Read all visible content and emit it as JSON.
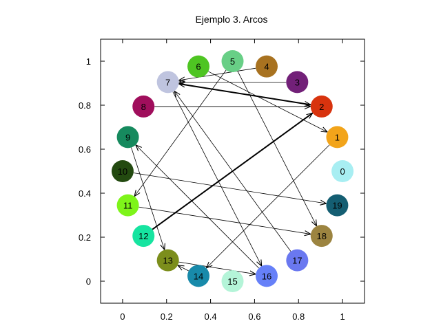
{
  "chart_data": {
    "type": "scatter",
    "title": "Ejemplo 3. Arcos",
    "xlabel": "",
    "ylabel": "",
    "xlim": [
      -0.1,
      1.1
    ],
    "ylim": [
      -0.1,
      1.1
    ],
    "xticks": [
      {
        "value": 0,
        "label": "0"
      },
      {
        "value": 0.2,
        "label": "0.2"
      },
      {
        "value": 0.4,
        "label": "0.4"
      },
      {
        "value": 0.6,
        "label": "0.6"
      },
      {
        "value": 0.8,
        "label": "0.8"
      },
      {
        "value": 1,
        "label": "1"
      }
    ],
    "yticks": [
      {
        "value": 0,
        "label": "0"
      },
      {
        "value": 0.2,
        "label": "0.2"
      },
      {
        "value": 0.4,
        "label": "0.4"
      },
      {
        "value": 0.6,
        "label": "0.6"
      },
      {
        "value": 0.8,
        "label": "0.8"
      },
      {
        "value": 1,
        "label": "1"
      }
    ],
    "grid": false,
    "nodes": [
      {
        "id": "0",
        "x": 1.0,
        "y": 0.5,
        "color": "#a8eef2"
      },
      {
        "id": "1",
        "x": 0.976,
        "y": 0.655,
        "color": "#f2a41a"
      },
      {
        "id": "2",
        "x": 0.905,
        "y": 0.794,
        "color": "#d8330e"
      },
      {
        "id": "3",
        "x": 0.794,
        "y": 0.905,
        "color": "#722078"
      },
      {
        "id": "4",
        "x": 0.655,
        "y": 0.976,
        "color": "#a87220"
      },
      {
        "id": "5",
        "x": 0.5,
        "y": 1.0,
        "color": "#68cf86"
      },
      {
        "id": "6",
        "x": 0.345,
        "y": 0.976,
        "color": "#4ec522"
      },
      {
        "id": "7",
        "x": 0.206,
        "y": 0.905,
        "color": "#bfc4df"
      },
      {
        "id": "8",
        "x": 0.095,
        "y": 0.794,
        "color": "#a00e5c"
      },
      {
        "id": "9",
        "x": 0.024,
        "y": 0.655,
        "color": "#168a5e"
      },
      {
        "id": "10",
        "x": 0.0,
        "y": 0.5,
        "color": "#234a10"
      },
      {
        "id": "11",
        "x": 0.024,
        "y": 0.345,
        "color": "#7ef41a"
      },
      {
        "id": "12",
        "x": 0.095,
        "y": 0.206,
        "color": "#16e4a0"
      },
      {
        "id": "13",
        "x": 0.206,
        "y": 0.095,
        "color": "#7c8e1c"
      },
      {
        "id": "14",
        "x": 0.345,
        "y": 0.024,
        "color": "#188aaa"
      },
      {
        "id": "15",
        "x": 0.5,
        "y": 0.0,
        "color": "#b4f4d8"
      },
      {
        "id": "16",
        "x": 0.655,
        "y": 0.024,
        "color": "#6680f8"
      },
      {
        "id": "17",
        "x": 0.794,
        "y": 0.095,
        "color": "#6a78f0"
      },
      {
        "id": "18",
        "x": 0.905,
        "y": 0.206,
        "color": "#9c8440"
      },
      {
        "id": "19",
        "x": 0.976,
        "y": 0.345,
        "color": "#145e72"
      }
    ],
    "edges": [
      {
        "from": "12",
        "to": "2",
        "bold": true
      },
      {
        "from": "2",
        "to": "7",
        "bold": true
      },
      {
        "from": "7",
        "to": "2",
        "bold": false
      },
      {
        "from": "8",
        "to": "2",
        "bold": false
      },
      {
        "from": "3",
        "to": "7",
        "bold": false
      },
      {
        "from": "4",
        "to": "7",
        "bold": false
      },
      {
        "from": "6",
        "to": "1",
        "bold": false
      },
      {
        "from": "5",
        "to": "18",
        "bold": false
      },
      {
        "from": "5",
        "to": "11",
        "bold": false
      },
      {
        "from": "7",
        "to": "16",
        "bold": false
      },
      {
        "from": "17",
        "to": "7",
        "bold": false
      },
      {
        "from": "16",
        "to": "9",
        "bold": false
      },
      {
        "from": "9",
        "to": "13",
        "bold": false
      },
      {
        "from": "10",
        "to": "19",
        "bold": false
      },
      {
        "from": "11",
        "to": "18",
        "bold": false
      },
      {
        "from": "1",
        "to": "14",
        "bold": false
      },
      {
        "from": "14",
        "to": "13",
        "bold": false
      },
      {
        "from": "13",
        "to": "16",
        "bold": false
      }
    ]
  }
}
